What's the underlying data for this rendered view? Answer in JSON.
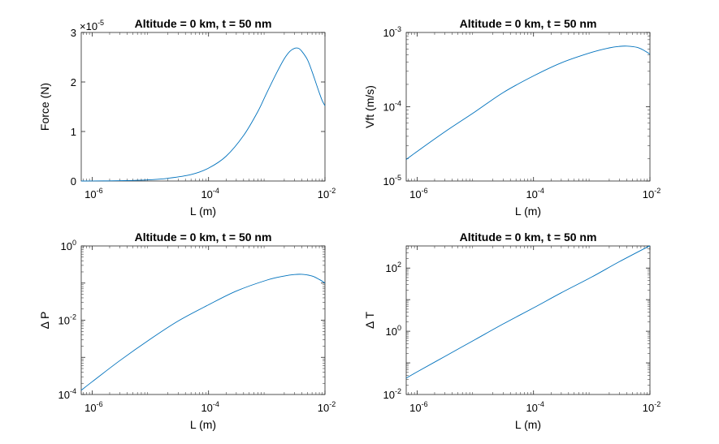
{
  "chart_data": [
    {
      "type": "line",
      "title": "Altitude = 0 km, t = 50 nm",
      "xlabel": "L (m)",
      "ylabel": "Force (N)",
      "xscale": "log",
      "yscale": "linear",
      "xlim": [
        6.5e-07,
        0.01
      ],
      "ylim": [
        0,
        3
      ],
      "y_multiplier": "×10",
      "y_multiplier_exp": "-5",
      "xticks": [
        {
          "base": "10",
          "exp": "-6"
        },
        {
          "base": "10",
          "exp": "-4"
        },
        {
          "base": "10",
          "exp": "-2"
        }
      ],
      "yticks": [
        "0",
        "1",
        "2",
        "3"
      ],
      "series": [
        {
          "x": [
            6.5e-07,
            1e-06,
            2e-06,
            5e-06,
            1e-05,
            2e-05,
            5e-05,
            0.0001,
            0.0002,
            0.0004,
            0.0007,
            0.001,
            0.0015,
            0.002,
            0.0025,
            0.003,
            0.0035,
            0.004,
            0.005,
            0.006,
            0.007,
            0.008,
            0.009,
            0.01
          ],
          "y": [
            0.0,
            0.001,
            0.003,
            0.012,
            0.026,
            0.055,
            0.13,
            0.26,
            0.5,
            0.92,
            1.4,
            1.78,
            2.2,
            2.47,
            2.62,
            2.68,
            2.68,
            2.62,
            2.45,
            2.21,
            1.98,
            1.78,
            1.62,
            1.52
          ]
        }
      ]
    },
    {
      "type": "line",
      "title": "Altitude = 0 km, t = 50 nm",
      "xlabel": "L (m)",
      "ylabel": "Vft (m/s)",
      "xscale": "log",
      "yscale": "log",
      "xlim": [
        6.5e-07,
        0.01
      ],
      "ylim": [
        1e-05,
        0.001
      ],
      "xticks": [
        {
          "base": "10",
          "exp": "-6"
        },
        {
          "base": "10",
          "exp": "-4"
        },
        {
          "base": "10",
          "exp": "-2"
        }
      ],
      "yticks": [
        {
          "base": "10",
          "exp": "-5"
        },
        {
          "base": "10",
          "exp": "-4"
        },
        {
          "base": "10",
          "exp": "-3"
        }
      ],
      "series": [
        {
          "x": [
            6.5e-07,
            1e-06,
            3e-06,
            1e-05,
            3e-05,
            0.0001,
            0.0003,
            0.001,
            0.002,
            0.003,
            0.004,
            0.006,
            0.008,
            0.01
          ],
          "y": [
            1.95e-05,
            2.5e-05,
            4.6e-05,
            8.6e-05,
            0.000155,
            0.00026,
            0.00039,
            0.00054,
            0.00062,
            0.00065,
            0.000655,
            0.00063,
            0.00057,
            0.00051
          ]
        }
      ]
    },
    {
      "type": "line",
      "title": "Altitude = 0 km, t = 50 nm",
      "xlabel": "L (m)",
      "ylabel": "Δ P",
      "xscale": "log",
      "yscale": "log",
      "xlim": [
        6.5e-07,
        0.01
      ],
      "ylim": [
        0.0001,
        1
      ],
      "xticks": [
        {
          "base": "10",
          "exp": "-6"
        },
        {
          "base": "10",
          "exp": "-4"
        },
        {
          "base": "10",
          "exp": "-2"
        }
      ],
      "yticks": [
        {
          "base": "10",
          "exp": "-4"
        },
        {
          "base": "10",
          "exp": "-2"
        },
        {
          "base": "10",
          "exp": "0"
        }
      ],
      "series": [
        {
          "x": [
            6.5e-07,
            1e-06,
            3e-06,
            1e-05,
            3e-05,
            0.0001,
            0.0003,
            0.001,
            0.002,
            0.003,
            0.004,
            0.006,
            0.008,
            0.01
          ],
          "y": [
            0.00013,
            0.00022,
            0.00082,
            0.0031,
            0.0095,
            0.026,
            0.061,
            0.12,
            0.155,
            0.17,
            0.172,
            0.155,
            0.125,
            0.1
          ]
        }
      ]
    },
    {
      "type": "line",
      "title": "Altitude = 0 km, t = 50 nm",
      "xlabel": "L (m)",
      "ylabel": "Δ T",
      "xscale": "log",
      "yscale": "log",
      "xlim": [
        6.5e-07,
        0.01
      ],
      "ylim": [
        0.01,
        500
      ],
      "xticks": [
        {
          "base": "10",
          "exp": "-6"
        },
        {
          "base": "10",
          "exp": "-4"
        },
        {
          "base": "10",
          "exp": "-2"
        }
      ],
      "yticks": [
        {
          "base": "10",
          "exp": "-2"
        },
        {
          "base": "10",
          "exp": "0"
        },
        {
          "base": "10",
          "exp": "2"
        }
      ],
      "series": [
        {
          "x": [
            6.5e-07,
            1e-06,
            3e-06,
            1e-05,
            3e-05,
            0.0001,
            0.0003,
            0.001,
            0.003,
            0.01
          ],
          "y": [
            0.033,
            0.052,
            0.16,
            0.55,
            1.7,
            5.5,
            16.5,
            52,
            160,
            510
          ]
        }
      ]
    }
  ]
}
